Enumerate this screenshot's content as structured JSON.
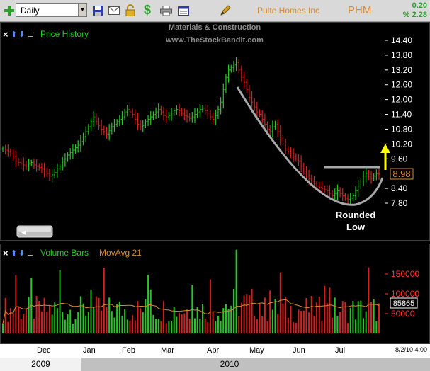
{
  "toolbar": {
    "interval": "Daily",
    "company": "Pulte Homes Inc",
    "ticker": "PHM",
    "change": "0.20",
    "change_pct": "% 2.28",
    "icons": [
      "add-icon",
      "save-icon",
      "mail-icon",
      "lock-icon",
      "dollar-icon",
      "print-icon",
      "table-icon",
      "pencil-icon"
    ]
  },
  "watermark": {
    "line1": "Materials & Construction",
    "line2": "www.TheStockBandit.com"
  },
  "price_panel": {
    "label": "Price History",
    "last_value": "8.98",
    "annotation": [
      "Rounded",
      "Low"
    ]
  },
  "volume_panel": {
    "label": "Volume Bars",
    "ma_label": "MovAvg 21",
    "last_value": "85865"
  },
  "colors": {
    "up": "#22c922",
    "down": "#d42020",
    "accent": "#d98b2b",
    "pattern": "#a8a8a8",
    "arrow": "#ffff00"
  },
  "bottom_axis": {
    "months": [
      "Dec",
      "Jan",
      "Feb",
      "Mar",
      "Apr",
      "May",
      "Jun",
      "Jul"
    ],
    "date": "8/2/10 4:00",
    "years": [
      "2009",
      "2010"
    ]
  },
  "chart_data": [
    {
      "type": "ohlc",
      "y_ticks": [
        "14.40",
        "13.80",
        "13.20",
        "12.60",
        "12.00",
        "11.40",
        "10.80",
        "10.20",
        "9.60",
        "8.40",
        "7.80"
      ],
      "ylim": [
        7.5,
        14.6
      ],
      "last": 8.98,
      "approx_closes": [
        10.0,
        9.95,
        9.9,
        9.8,
        9.7,
        9.5,
        9.45,
        9.4,
        9.35,
        9.3,
        9.4,
        9.45,
        9.35,
        9.3,
        9.25,
        9.2,
        9.1,
        9.0,
        8.9,
        8.95,
        9.05,
        9.2,
        9.3,
        9.5,
        9.6,
        9.75,
        9.85,
        9.95,
        10.05,
        10.15,
        10.3,
        10.5,
        10.7,
        10.9,
        11.1,
        11.3,
        11.1,
        10.95,
        10.8,
        10.7,
        10.6,
        10.75,
        10.9,
        11.0,
        11.1,
        11.2,
        11.3,
        11.5,
        11.6,
        11.5,
        11.4,
        11.2,
        11.0,
        10.9,
        10.95,
        11.1,
        11.2,
        11.3,
        11.4,
        11.5,
        11.6,
        11.5,
        11.35,
        11.3,
        11.35,
        11.45,
        11.55,
        11.6,
        11.55,
        11.45,
        11.35,
        11.3,
        11.25,
        11.3,
        11.4,
        11.5,
        11.6,
        11.65,
        11.55,
        11.45,
        11.3,
        11.2,
        11.35,
        11.6,
        11.9,
        12.4,
        12.9,
        13.2,
        13.3,
        13.4,
        13.5,
        13.2,
        12.9,
        12.7,
        12.4,
        12.1,
        11.9,
        11.7,
        11.5,
        11.4,
        11.2,
        11.0,
        10.8,
        10.7,
        10.9,
        11.0,
        10.7,
        10.4,
        10.2,
        10.0,
        9.9,
        9.8,
        9.7,
        9.6,
        9.5,
        9.3,
        9.1,
        8.9,
        8.8,
        8.7,
        8.6,
        8.5,
        8.45,
        8.4,
        8.35,
        8.3,
        8.2,
        8.1,
        8.2,
        8.3,
        8.2,
        8.1,
        8.0,
        7.95,
        8.0,
        8.1,
        8.3,
        8.5,
        8.7,
        8.9,
        9.0,
        8.9,
        8.8,
        8.9,
        9.0,
        8.98
      ]
    },
    {
      "type": "bar",
      "y_ticks": [
        "150000",
        "100000",
        "50000"
      ],
      "ylim": [
        0,
        200000
      ],
      "last": 85865,
      "series": [
        {
          "name": "MovAvg 21"
        }
      ]
    }
  ]
}
